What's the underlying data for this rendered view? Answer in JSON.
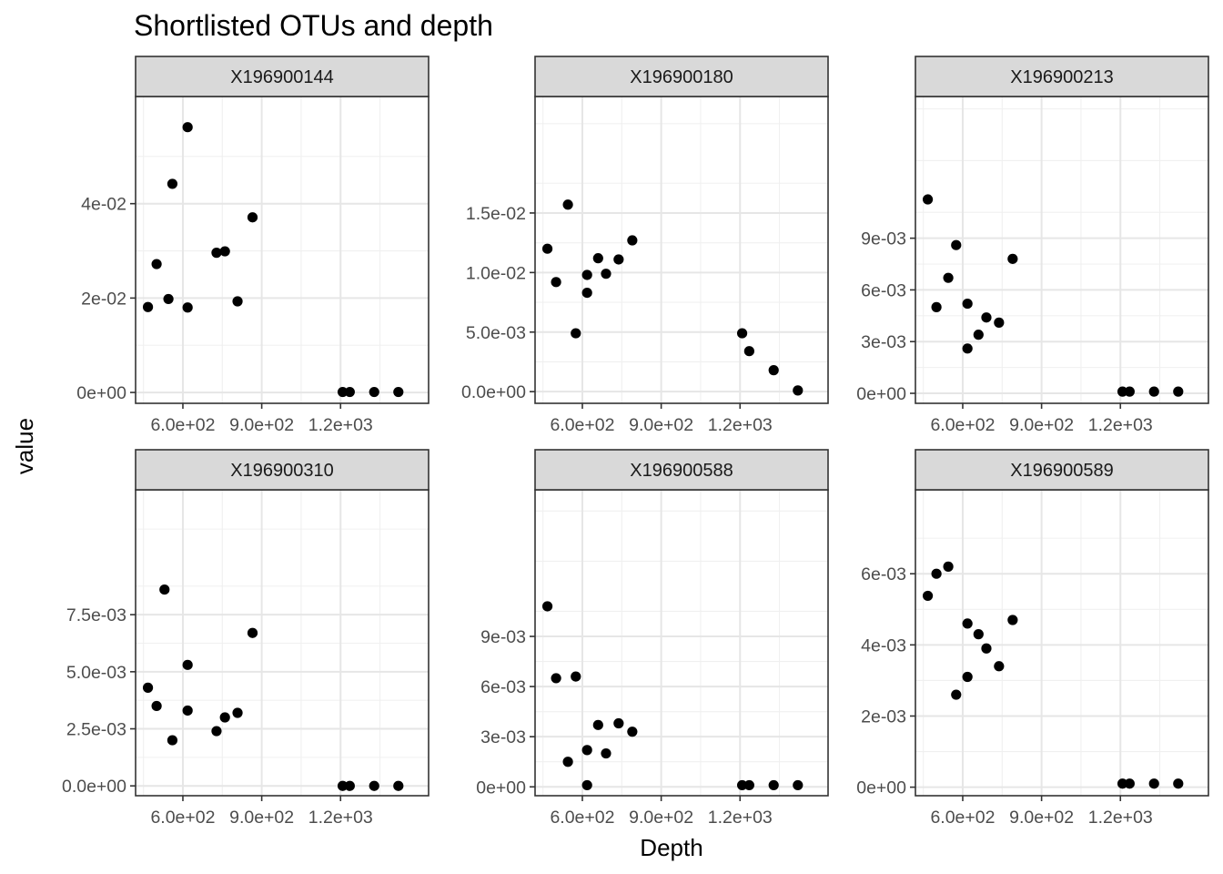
{
  "chart_data": {
    "type": "scatter",
    "title": "Shortlisted OTUs and depth",
    "xlabel": "Depth",
    "ylabel": "value",
    "layout": "facet_wrap 2 rows x 3 columns, free y scales",
    "grid": true,
    "point_color": "#000000",
    "strip_fill": "#d9d9d9",
    "panel_border": "#333333",
    "x_ticks": [
      600,
      900,
      1200
    ],
    "x_tick_labels": [
      "6.0e+02",
      "9.0e+02",
      "1.2e+03"
    ],
    "xlim": [
      420,
      1535
    ],
    "depths": [
      467,
      500,
      545,
      575,
      618,
      660,
      690,
      738,
      1208,
      1235,
      1328,
      1420
    ],
    "panels": [
      {
        "name": "X196900144",
        "ylim": [
          -0.0023,
          0.0627
        ],
        "y_ticks": [
          0,
          0.02,
          0.04
        ],
        "y_tick_labels": [
          "0e+00",
          "2e-02",
          "4e-02"
        ],
        "points": [
          [
            467,
            0.0181
          ],
          [
            500,
            0.0272
          ],
          [
            545,
            0.0198
          ],
          [
            560,
            0.0442
          ],
          [
            618,
            0.018
          ],
          [
            618,
            0.0562
          ],
          [
            728,
            0.0296
          ],
          [
            760,
            0.0299
          ],
          [
            808,
            0.0193
          ],
          [
            865,
            0.0371
          ],
          [
            1208,
            0.0001
          ],
          [
            1235,
            0.0001
          ],
          [
            1328,
            0.0001
          ],
          [
            1420,
            0.0001
          ]
        ]
      },
      {
        "name": "X196900180",
        "ylim": [
          -0.00098,
          0.02478
        ],
        "y_ticks": [
          0,
          0.005,
          0.01,
          0.015
        ],
        "y_tick_labels": [
          "0.0e+00",
          "5.0e-03",
          "1.0e-02",
          "1.5e-02"
        ],
        "points": [
          [
            467,
            0.012
          ],
          [
            500,
            0.0092
          ],
          [
            545,
            0.0157
          ],
          [
            575,
            0.0049
          ],
          [
            618,
            0.0083
          ],
          [
            618,
            0.0098
          ],
          [
            660,
            0.0112
          ],
          [
            690,
            0.0099
          ],
          [
            738,
            0.0111
          ],
          [
            790,
            0.0127
          ],
          [
            1208,
            0.0049
          ],
          [
            1235,
            0.0034
          ],
          [
            1328,
            0.0018
          ],
          [
            1420,
            0.0001
          ]
        ]
      },
      {
        "name": "X196900213",
        "ylim": [
          -0.00058,
          0.01722
        ],
        "y_ticks": [
          0,
          0.003,
          0.006,
          0.009
        ],
        "y_tick_labels": [
          "0e+00",
          "3e-03",
          "6e-03",
          "9e-03"
        ],
        "points": [
          [
            467,
            0.01125
          ],
          [
            500,
            0.005
          ],
          [
            545,
            0.0067
          ],
          [
            575,
            0.0086
          ],
          [
            618,
            0.0026
          ],
          [
            618,
            0.0052
          ],
          [
            660,
            0.0034
          ],
          [
            690,
            0.0044
          ],
          [
            738,
            0.0041
          ],
          [
            790,
            0.0078
          ],
          [
            1208,
            0.0001
          ],
          [
            1235,
            0.0001
          ],
          [
            1328,
            0.0001
          ],
          [
            1420,
            0.0001
          ]
        ]
      },
      {
        "name": "X196900310",
        "ylim": [
          -0.00043,
          0.01297
        ],
        "y_ticks": [
          0,
          0.0025,
          0.005,
          0.0075
        ],
        "y_tick_labels": [
          "0.0e+00",
          "2.5e-03",
          "5.0e-03",
          "7.5e-03"
        ],
        "points": [
          [
            467,
            0.0043
          ],
          [
            500,
            0.0035
          ],
          [
            530,
            0.0086
          ],
          [
            560,
            0.002
          ],
          [
            618,
            0.0033
          ],
          [
            618,
            0.0053
          ],
          [
            728,
            0.0024
          ],
          [
            760,
            0.003
          ],
          [
            808,
            0.0032
          ],
          [
            865,
            0.0067
          ],
          [
            1208,
            0.0
          ],
          [
            1235,
            0.0
          ],
          [
            1328,
            0.0
          ],
          [
            1420,
            0.0
          ]
        ]
      },
      {
        "name": "X196900588",
        "ylim": [
          -0.00053,
          0.01777
        ],
        "y_ticks": [
          0,
          0.003,
          0.006,
          0.009
        ],
        "y_tick_labels": [
          "0e+00",
          "3e-03",
          "6e-03",
          "9e-03"
        ],
        "points": [
          [
            467,
            0.0108
          ],
          [
            500,
            0.0065
          ],
          [
            545,
            0.0015
          ],
          [
            575,
            0.0066
          ],
          [
            618,
            0.0001
          ],
          [
            618,
            0.0022
          ],
          [
            660,
            0.0037
          ],
          [
            690,
            0.002
          ],
          [
            738,
            0.0038
          ],
          [
            790,
            0.0033
          ],
          [
            1208,
            0.0001
          ],
          [
            1235,
            0.0001
          ],
          [
            1328,
            0.0001
          ],
          [
            1420,
            0.0001
          ]
        ]
      },
      {
        "name": "X196900589",
        "ylim": [
          -0.00024,
          0.00836
        ],
        "y_ticks": [
          0,
          0.002,
          0.004,
          0.006
        ],
        "y_tick_labels": [
          "0e+00",
          "2e-03",
          "4e-03",
          "6e-03"
        ],
        "points": [
          [
            467,
            0.00538
          ],
          [
            500,
            0.006
          ],
          [
            545,
            0.0062
          ],
          [
            575,
            0.0026
          ],
          [
            618,
            0.0031
          ],
          [
            618,
            0.0046
          ],
          [
            660,
            0.0043
          ],
          [
            690,
            0.0039
          ],
          [
            738,
            0.0034
          ],
          [
            790,
            0.0047
          ],
          [
            1208,
            0.0001
          ],
          [
            1235,
            0.0001
          ],
          [
            1328,
            0.0001
          ],
          [
            1420,
            0.0001
          ]
        ]
      }
    ]
  }
}
